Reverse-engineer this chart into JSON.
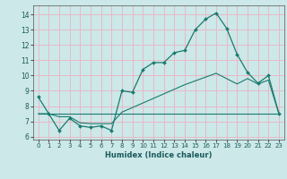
{
  "title": "",
  "xlabel": "Humidex (Indice chaleur)",
  "ylabel": "",
  "bg_color": "#cce8e8",
  "line_color": "#1a7a6e",
  "grid_color": "#e8b8c8",
  "xlim": [
    -0.5,
    23.5
  ],
  "ylim": [
    5.8,
    14.6
  ],
  "xticks": [
    0,
    1,
    2,
    3,
    4,
    5,
    6,
    7,
    8,
    9,
    10,
    11,
    12,
    13,
    14,
    15,
    16,
    17,
    18,
    19,
    20,
    21,
    22,
    23
  ],
  "yticks": [
    6,
    7,
    8,
    9,
    10,
    11,
    12,
    13,
    14
  ],
  "line1_x": [
    0,
    1,
    2,
    3,
    4,
    5,
    6,
    7,
    8,
    9,
    10,
    11,
    12,
    13,
    14,
    15,
    16,
    17,
    18,
    19,
    20,
    21,
    22,
    23
  ],
  "line1_y": [
    8.6,
    7.5,
    6.4,
    7.2,
    6.7,
    6.6,
    6.7,
    6.4,
    9.0,
    8.9,
    10.4,
    10.85,
    10.85,
    11.5,
    11.65,
    13.0,
    13.7,
    14.1,
    13.1,
    11.4,
    10.2,
    9.5,
    10.0,
    7.5
  ],
  "line2_x": [
    0,
    23
  ],
  "line2_y": [
    7.5,
    7.5
  ],
  "line3_x": [
    0,
    1,
    2,
    3,
    4,
    5,
    6,
    7,
    8,
    9,
    10,
    11,
    12,
    13,
    14,
    15,
    16,
    17,
    18,
    19,
    20,
    21,
    22,
    23
  ],
  "line3_y": [
    7.5,
    7.5,
    7.3,
    7.3,
    6.9,
    6.85,
    6.85,
    6.85,
    7.6,
    7.9,
    8.2,
    8.5,
    8.8,
    9.1,
    9.4,
    9.65,
    9.9,
    10.15,
    9.8,
    9.45,
    9.8,
    9.45,
    9.7,
    7.5
  ],
  "xlabel_fontsize": 6.0,
  "tick_fontsize": 5.0
}
